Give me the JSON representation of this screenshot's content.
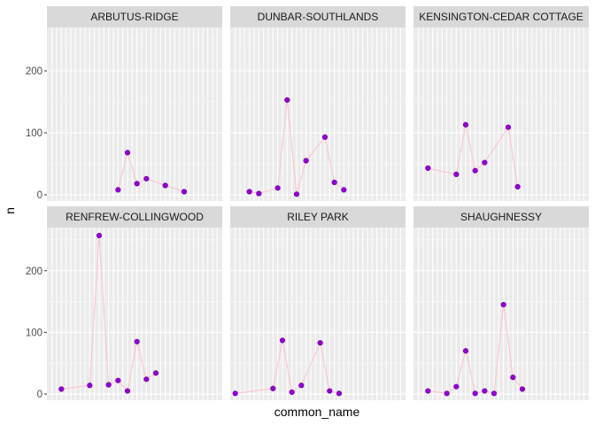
{
  "chart_data": {
    "type": "line",
    "xlabel": "common_name",
    "ylabel": "n",
    "ylim": [
      -10,
      270
    ],
    "yticks": [
      0,
      100,
      200
    ],
    "categories_count": 36,
    "style": {
      "panel_bg": "#EBEBEB",
      "strip_bg": "#D9D9D9",
      "grid_color": "#FFFFFF",
      "line_color": "#FFC0CB",
      "point_fill": "#9400D3",
      "point_stroke": "#6A00A0"
    },
    "panels": [
      {
        "title": "ARBUTUS-RIDGE",
        "points": [
          {
            "x": 15,
            "y": 8
          },
          {
            "x": 17,
            "y": 68
          },
          {
            "x": 19,
            "y": 18
          },
          {
            "x": 21,
            "y": 26
          },
          {
            "x": 25,
            "y": 15
          },
          {
            "x": 29,
            "y": 5
          }
        ]
      },
      {
        "title": "DUNBAR-SOUTHLANDS",
        "points": [
          {
            "x": 4,
            "y": 5
          },
          {
            "x": 6,
            "y": 2
          },
          {
            "x": 10,
            "y": 11
          },
          {
            "x": 12,
            "y": 153
          },
          {
            "x": 14,
            "y": 1
          },
          {
            "x": 16,
            "y": 55
          },
          {
            "x": 20,
            "y": 93
          },
          {
            "x": 22,
            "y": 20
          },
          {
            "x": 24,
            "y": 8
          }
        ]
      },
      {
        "title": "KENSINGTON-CEDAR COTTAGE",
        "points": [
          {
            "x": 3,
            "y": 43
          },
          {
            "x": 9,
            "y": 33
          },
          {
            "x": 11,
            "y": 113
          },
          {
            "x": 13,
            "y": 39
          },
          {
            "x": 15,
            "y": 52
          },
          {
            "x": 20,
            "y": 109
          },
          {
            "x": 22,
            "y": 13
          }
        ]
      },
      {
        "title": "RENFREW-COLLINGWOOD",
        "points": [
          {
            "x": 3,
            "y": 8
          },
          {
            "x": 9,
            "y": 14
          },
          {
            "x": 11,
            "y": 257
          },
          {
            "x": 13,
            "y": 15
          },
          {
            "x": 15,
            "y": 22
          },
          {
            "x": 17,
            "y": 5
          },
          {
            "x": 19,
            "y": 85
          },
          {
            "x": 21,
            "y": 24
          },
          {
            "x": 23,
            "y": 34
          }
        ]
      },
      {
        "title": "RILEY PARK",
        "points": [
          {
            "x": 1,
            "y": 1
          },
          {
            "x": 9,
            "y": 9
          },
          {
            "x": 11,
            "y": 87
          },
          {
            "x": 13,
            "y": 3
          },
          {
            "x": 15,
            "y": 14
          },
          {
            "x": 19,
            "y": 83
          },
          {
            "x": 21,
            "y": 5
          },
          {
            "x": 23,
            "y": 1
          }
        ]
      },
      {
        "title": "SHAUGHNESSY",
        "points": [
          {
            "x": 3,
            "y": 5
          },
          {
            "x": 7,
            "y": 1
          },
          {
            "x": 9,
            "y": 12
          },
          {
            "x": 11,
            "y": 70
          },
          {
            "x": 13,
            "y": 1
          },
          {
            "x": 15,
            "y": 5
          },
          {
            "x": 17,
            "y": 1
          },
          {
            "x": 19,
            "y": 145
          },
          {
            "x": 21,
            "y": 27
          },
          {
            "x": 23,
            "y": 8
          }
        ]
      }
    ]
  }
}
